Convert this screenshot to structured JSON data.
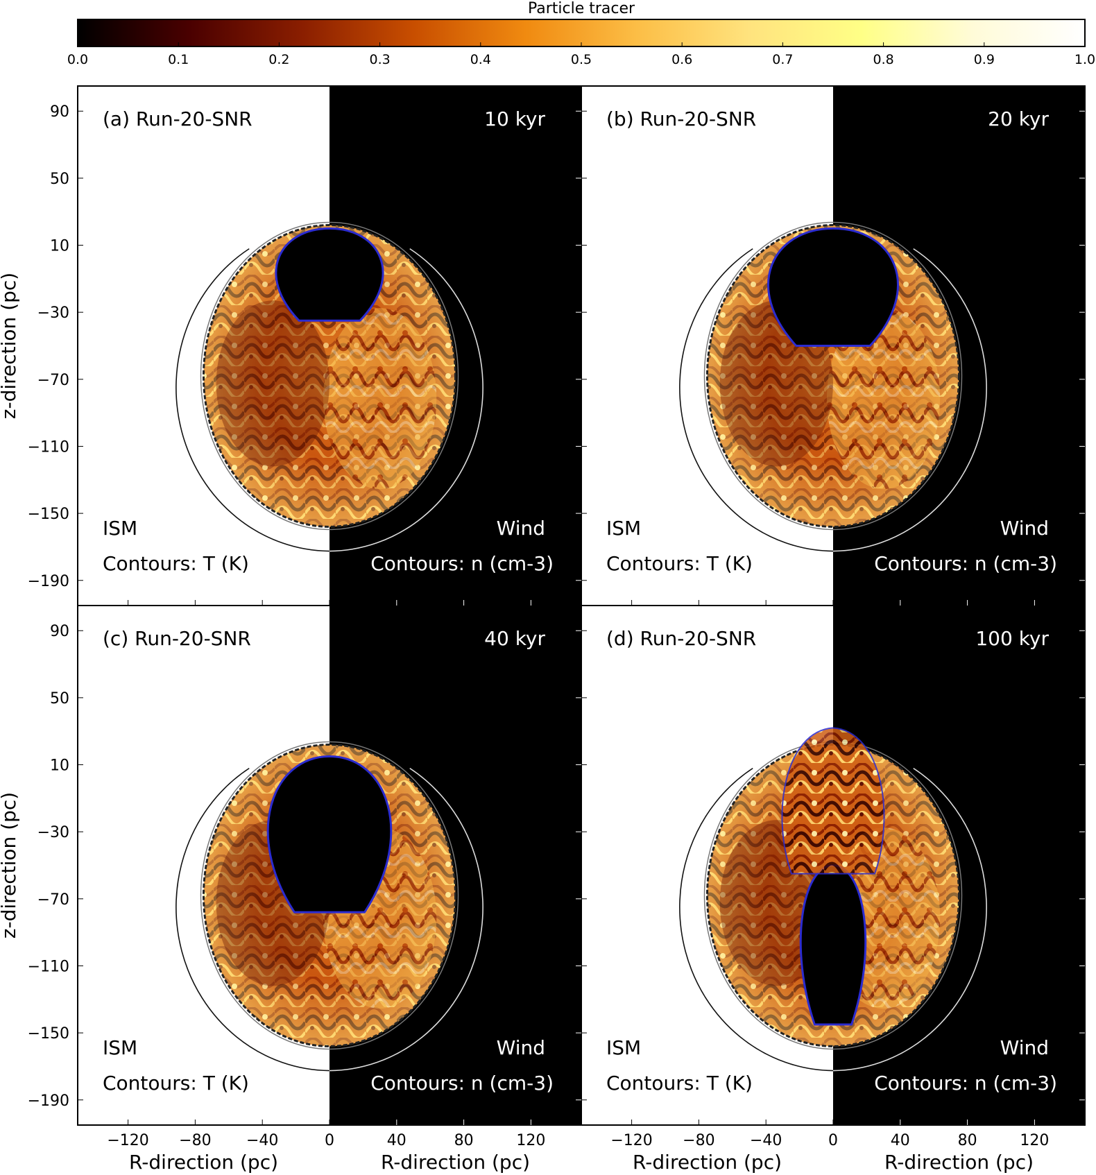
{
  "chart_data": {
    "type": "heatmap",
    "colorbar": {
      "title": "Particle tracer",
      "min": 0.0,
      "max": 1.0,
      "ticks": [
        "0.0",
        "0.1",
        "0.2",
        "0.3",
        "0.4",
        "0.5",
        "0.6",
        "0.7",
        "0.8",
        "0.9",
        "1.0"
      ],
      "stops": [
        "#000000",
        "#4a0000",
        "#8a1e00",
        "#c84e00",
        "#f08a10",
        "#fcbe46",
        "#ffe37e",
        "#ffff86",
        "#fffbd8",
        "#ffffff"
      ]
    },
    "x_axis": {
      "label": "R-direction (pc)",
      "left_ticks": [
        "−120",
        "−80",
        "−40",
        "0"
      ],
      "right_ticks": [
        "0",
        "40",
        "80",
        "120"
      ],
      "range": [
        -150,
        150
      ]
    },
    "y_axis": {
      "label": "z-direction (pc)",
      "ticks": [
        "90",
        "50",
        "10",
        "−30",
        "−70",
        "−110",
        "−150",
        "−190"
      ],
      "range": [
        -205,
        105
      ]
    },
    "panels": [
      {
        "id": "a",
        "label": "(a) Run-20-SNR",
        "time": "10 kyr",
        "left_label": "ISM",
        "right_label": "Wind",
        "left_contours": "Contours: T (K)",
        "right_contours": "Contours: n (cm-3)",
        "cavity_top_pc": 20,
        "cavity_bottom_pc": -35,
        "cavity_half_width_pc": 33
      },
      {
        "id": "b",
        "label": "(b) Run-20-SNR",
        "time": "20 kyr",
        "left_label": "ISM",
        "right_label": "Wind",
        "left_contours": "Contours: T (K)",
        "right_contours": "Contours: n (cm-3)",
        "cavity_top_pc": 20,
        "cavity_bottom_pc": -50,
        "cavity_half_width_pc": 40
      },
      {
        "id": "c",
        "label": "(c) Run-20-SNR",
        "time": "40 kyr",
        "left_label": "ISM",
        "right_label": "Wind",
        "left_contours": "Contours: T (K)",
        "right_contours": "Contours: n (cm-3)",
        "cavity_top_pc": 15,
        "cavity_bottom_pc": -78,
        "cavity_half_width_pc": 38
      },
      {
        "id": "d",
        "label": "(d) Run-20-SNR",
        "time": "100 kyr",
        "left_label": "ISM",
        "right_label": "Wind",
        "left_contours": "Contours: T (K)",
        "right_contours": "Contours: n (cm-3)",
        "cavity_top_pc": -50,
        "cavity_bottom_pc": -145,
        "cavity_half_width_pc": 20
      }
    ],
    "remnant": {
      "center_z_pc": -68,
      "half_width_pc": 75,
      "half_height_pc": 90
    },
    "outer_shock": {
      "center_z_pc": -75,
      "radius_pc": 92
    }
  }
}
